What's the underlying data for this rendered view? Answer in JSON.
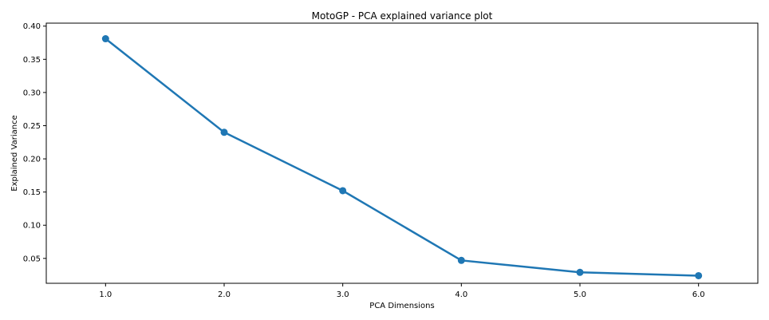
{
  "chart_data": {
    "type": "line",
    "title": "MotoGP - PCA explained variance plot",
    "xlabel": "PCA Dimensions",
    "ylabel": "Explained Variance",
    "x": [
      1.0,
      2.0,
      3.0,
      4.0,
      5.0,
      6.0
    ],
    "y": [
      0.381,
      0.24,
      0.152,
      0.047,
      0.029,
      0.024
    ],
    "xlim": [
      0.5,
      6.5
    ],
    "ylim": [
      0.0125,
      0.4045
    ],
    "x_ticks": [
      "1.0",
      "2.0",
      "3.0",
      "4.0",
      "5.0",
      "6.0"
    ],
    "y_ticks": [
      "0.05",
      "0.10",
      "0.15",
      "0.20",
      "0.25",
      "0.30",
      "0.35",
      "0.40"
    ],
    "grid": false,
    "legend": "none",
    "marker": "circle",
    "colors": {
      "series": "#1f77b4",
      "axes": "#000000",
      "background": "#ffffff"
    }
  }
}
